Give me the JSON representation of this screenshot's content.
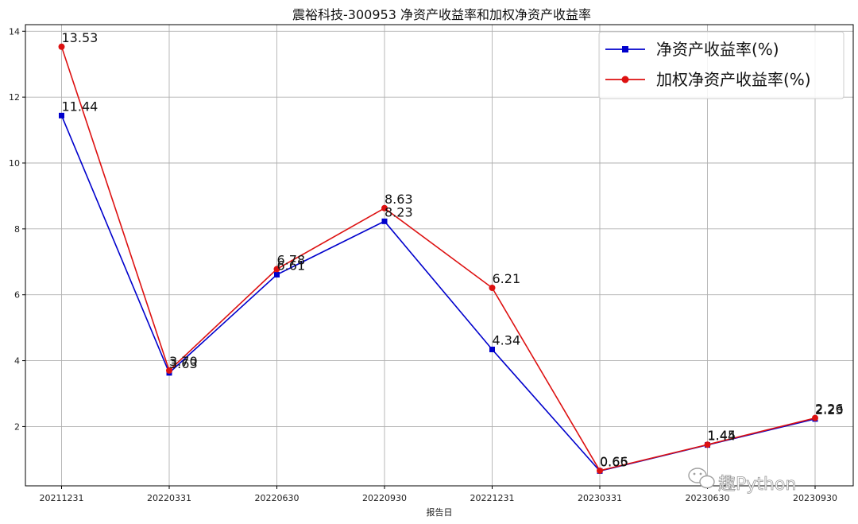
{
  "chart_data": {
    "type": "line",
    "title": "震裕科技-300953 净资产收益率和加权净资产收益率",
    "xlabel": "报告日",
    "ylabel": "",
    "categories": [
      "20211231",
      "20220331",
      "20220630",
      "20220930",
      "20221231",
      "20230331",
      "20230630",
      "20230930"
    ],
    "ylim": [
      0.2,
      14.2
    ],
    "yticks": [
      2,
      4,
      6,
      8,
      10,
      12,
      14
    ],
    "grid": true,
    "legend_position": "top-right",
    "series": [
      {
        "name": "净资产收益率(%)",
        "color": "#0000cc",
        "marker": "square",
        "values": [
          11.44,
          3.63,
          6.61,
          8.23,
          4.34,
          0.65,
          1.44,
          2.23
        ],
        "labels": [
          "11.44",
          "3.63",
          "6.61",
          "8.23",
          "4.34",
          "0.65",
          "1.44",
          "2.23"
        ]
      },
      {
        "name": "加权净资产收益率(%)",
        "color": "#dd1111",
        "marker": "circle",
        "values": [
          13.53,
          3.7,
          6.78,
          8.63,
          6.21,
          0.66,
          1.45,
          2.26
        ],
        "labels": [
          "13.53",
          "3.70",
          "6.78",
          "8.63",
          "6.21",
          "0.66",
          "1.45",
          "2.26"
        ]
      }
    ]
  },
  "watermark": {
    "text": "趣Python",
    "icon": "wechat-icon"
  }
}
